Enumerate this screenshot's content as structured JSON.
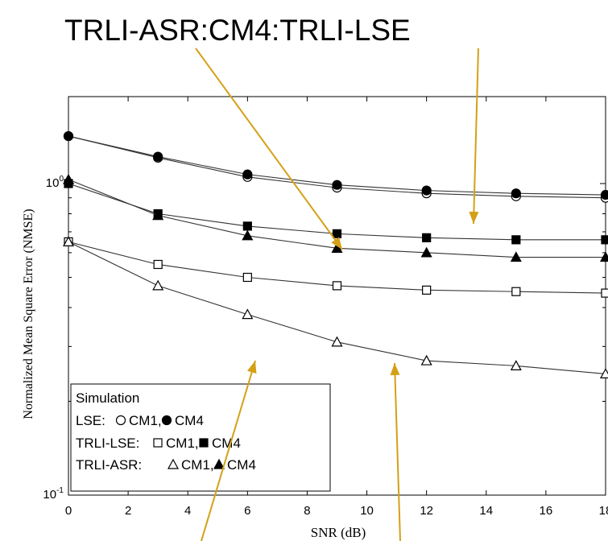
{
  "chart_data": {
    "type": "line",
    "title": "TRLI-ASR:CM4:TRLI-LSE",
    "xlabel": "SNR (dB)",
    "ylabel": "Normalized Mean Square Error (NMSE)",
    "xlim": [
      0,
      18
    ],
    "ylim": [
      0.1,
      1.5
    ],
    "yscale": "log",
    "xticks": [
      0,
      2,
      4,
      6,
      8,
      10,
      12,
      14,
      16,
      18
    ],
    "yticks": [
      {
        "value": 0.1,
        "base": "10",
        "exp": "-1"
      },
      {
        "value": 1,
        "base": "10",
        "exp": "0"
      }
    ],
    "x": [
      0,
      3,
      6,
      9,
      12,
      15,
      18
    ],
    "grid": false,
    "series": [
      {
        "marker": "circle-open",
        "values": [
          1.42,
          1.21,
          1.05,
          0.97,
          0.93,
          0.91,
          0.9
        ]
      },
      {
        "marker": "circle-filled",
        "values": [
          1.42,
          1.22,
          1.07,
          0.99,
          0.95,
          0.93,
          0.92
        ]
      },
      {
        "marker": "square-open",
        "values": [
          0.65,
          0.55,
          0.5,
          0.47,
          0.455,
          0.45,
          0.445
        ]
      },
      {
        "marker": "square-filled",
        "values": [
          1.0,
          0.8,
          0.73,
          0.69,
          0.67,
          0.66,
          0.66
        ]
      },
      {
        "marker": "triangle-open",
        "values": [
          0.65,
          0.47,
          0.38,
          0.31,
          0.27,
          0.26,
          0.245
        ]
      },
      {
        "marker": "triangle-filled",
        "values": [
          1.03,
          0.79,
          0.68,
          0.62,
          0.6,
          0.58,
          0.58
        ]
      }
    ],
    "legend": {
      "position": "bottom-left",
      "heading": "Simulation",
      "rows": [
        {
          "label": "LSE:",
          "cm1": "CM1,",
          "cm4": "CM4",
          "m1": "circle-open",
          "m2": "circle-filled"
        },
        {
          "label": "TRLI-LSE:",
          "cm1": "CM1,",
          "cm4": "CM4",
          "m1": "square-open",
          "m2": "square-filled"
        },
        {
          "label": "TRLI-ASR:",
          "cm1": "CM1,",
          "cm4": "CM4",
          "m1": "triangle-open",
          "m2": "triangle-filled"
        }
      ]
    },
    "annotation_arrows": {
      "color": "#D4A017",
      "count": 4
    }
  }
}
